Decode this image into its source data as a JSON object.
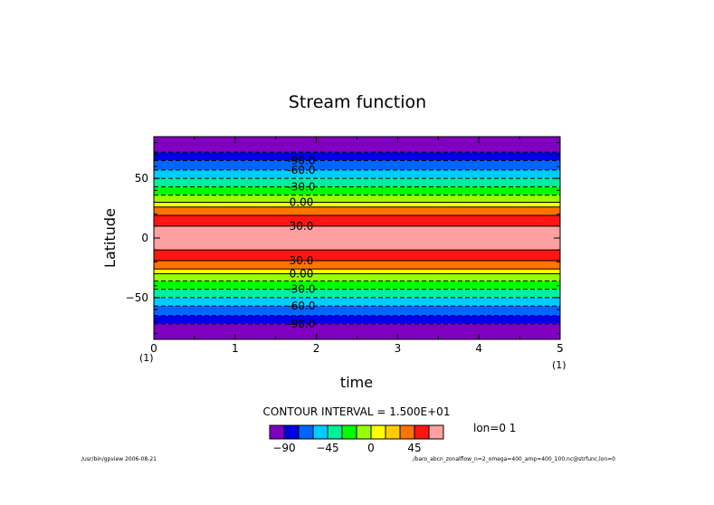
{
  "chart_data": {
    "type": "heatmap",
    "title": "Stream function",
    "xlabel": "time",
    "ylabel": "Latitude",
    "xlim": [
      0,
      5
    ],
    "ylim": [
      -85,
      85
    ],
    "x_ticks": [
      "0",
      "1",
      "2",
      "3",
      "4",
      "5"
    ],
    "y_ticks": [
      "50",
      "0",
      "−50"
    ],
    "x_scale_left": "(1)",
    "x_scale_right": "(1)",
    "contour_interval_text": "CONTOUR INTERVAL = 1.500E+01",
    "side_label": "lon=0 1",
    "colorbar": {
      "colors": [
        "#7f00bf",
        "#0000e6",
        "#0066ff",
        "#00ccff",
        "#00f0a0",
        "#00ff00",
        "#99ff00",
        "#ffff00",
        "#ffcc00",
        "#ff7300",
        "#ff1414",
        "#ffa0a0"
      ],
      "tick_labels": [
        "−90",
        "−45",
        "0",
        "45"
      ]
    },
    "bands": [
      {
        "from": 72,
        "to": 85,
        "color": "#7f00bf"
      },
      {
        "from": 65,
        "to": 72,
        "color": "#0000e6"
      },
      {
        "from": 57,
        "to": 65,
        "color": "#0066ff"
      },
      {
        "from": 50,
        "to": 57,
        "color": "#00ccff"
      },
      {
        "from": 43,
        "to": 50,
        "color": "#00f0a0"
      },
      {
        "from": 36,
        "to": 43,
        "color": "#00ff00"
      },
      {
        "from": 30,
        "to": 36,
        "color": "#99ff00"
      },
      {
        "from": 26,
        "to": 30,
        "color": "#ffff00"
      },
      {
        "from": 19,
        "to": 26,
        "color": "#ff7300"
      },
      {
        "from": 10,
        "to": 19,
        "color": "#ff1414"
      },
      {
        "from": -10,
        "to": 10,
        "color": "#ffa0a0"
      },
      {
        "from": -19,
        "to": -10,
        "color": "#ff1414"
      },
      {
        "from": -26,
        "to": -19,
        "color": "#ff7300"
      },
      {
        "from": -30,
        "to": -26,
        "color": "#ffff00"
      },
      {
        "from": -36,
        "to": -30,
        "color": "#99ff00"
      },
      {
        "from": -43,
        "to": -36,
        "color": "#00ff00"
      },
      {
        "from": -50,
        "to": -43,
        "color": "#00f0a0"
      },
      {
        "from": -57,
        "to": -50,
        "color": "#00ccff"
      },
      {
        "from": -65,
        "to": -57,
        "color": "#0066ff"
      },
      {
        "from": -72,
        "to": -65,
        "color": "#0000e6"
      },
      {
        "from": -85,
        "to": -72,
        "color": "#7f00bf"
      }
    ],
    "contours": [
      {
        "lat": 72,
        "dashed": true
      },
      {
        "lat": 65,
        "dashed": true,
        "label": "-90.0"
      },
      {
        "lat": 57,
        "dashed": true,
        "label": "-60.0"
      },
      {
        "lat": 50,
        "dashed": true
      },
      {
        "lat": 43,
        "dashed": true,
        "label": "-30.0"
      },
      {
        "lat": 36,
        "dashed": true
      },
      {
        "lat": 30,
        "dashed": false,
        "label": "0.00"
      },
      {
        "lat": 26,
        "dashed": false
      },
      {
        "lat": 19,
        "dashed": false
      },
      {
        "lat": 10,
        "dashed": false,
        "label": "30.0"
      },
      {
        "lat": -10,
        "dashed": false
      },
      {
        "lat": -19,
        "dashed": false,
        "label": "30.0"
      },
      {
        "lat": -26,
        "dashed": false
      },
      {
        "lat": -30,
        "dashed": false,
        "label": "0.00"
      },
      {
        "lat": -36,
        "dashed": true
      },
      {
        "lat": -43,
        "dashed": true,
        "label": "-30.0"
      },
      {
        "lat": -50,
        "dashed": true
      },
      {
        "lat": -57,
        "dashed": true,
        "label": "-60.0"
      },
      {
        "lat": -65,
        "dashed": true
      },
      {
        "lat": -72,
        "dashed": true,
        "label": "-90.0"
      }
    ]
  },
  "footer": {
    "left": "/usr/bin/gpview  2006-08-21",
    "right": "./baro_abcn_zonalflow_n=2_omega=400_amp=400_100.nc@strfunc,lon=0"
  }
}
